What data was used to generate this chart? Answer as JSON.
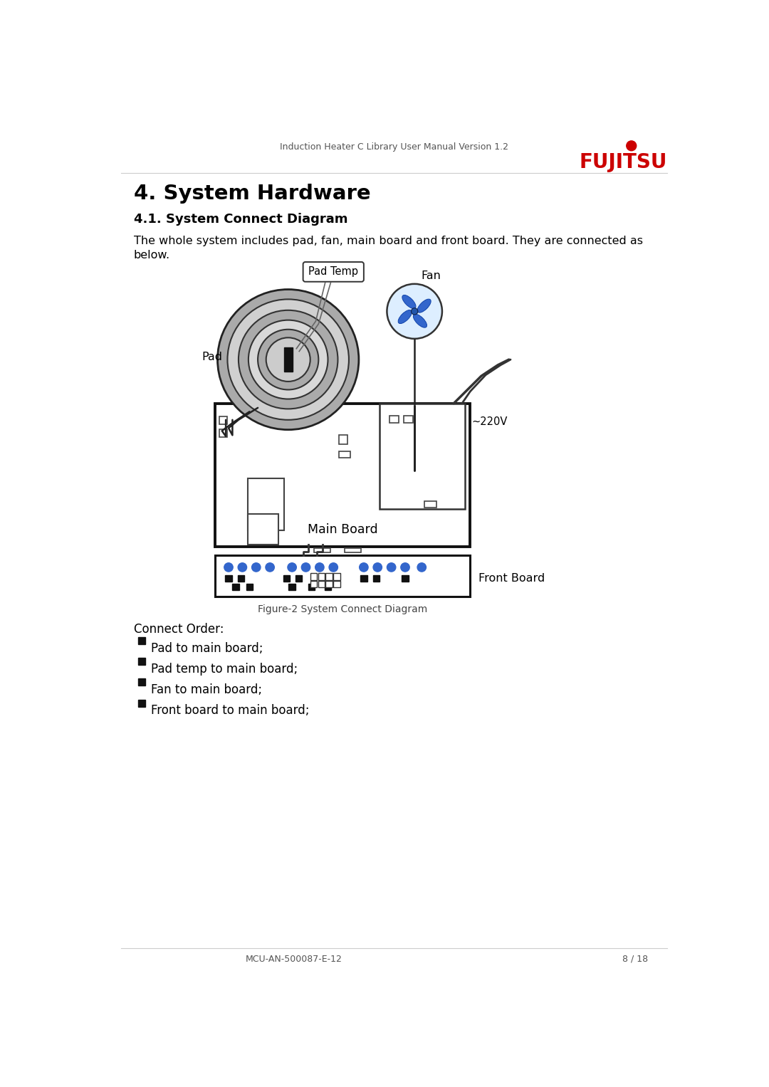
{
  "page_title": "Induction Heater C Library User Manual Version 1.2",
  "section_title": "4. System Hardware",
  "subsection_title": "4.1. System Connect Diagram",
  "body_text_line1": "The whole system includes pad, fan, main board and front board. They are connected as",
  "body_text_line2": "below.",
  "figure_caption": "Figure-2 System Connect Diagram",
  "connect_order_title": "Connect Order:",
  "connect_order_items": [
    "Pad to main board;",
    "Pad temp to main board;",
    "Fan to main board;",
    "Front board to main board;"
  ],
  "footer_left": "MCU-AN-500087-E-12",
  "footer_right": "8 / 18",
  "bg_color": "#ffffff",
  "text_color": "#000000",
  "fujitsu_red": "#cc0000",
  "diagram_gray": "#aaaaaa",
  "dot_blue": "#3366cc",
  "fan_blue": "#3366cc",
  "fan_bg": "#ddeeff"
}
